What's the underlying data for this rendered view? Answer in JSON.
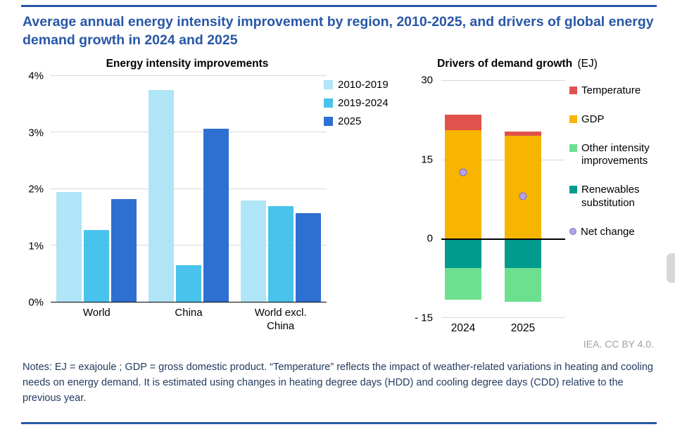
{
  "header": {
    "title": "Average annual energy intensity improvement by region, 2010-2025, and drivers of global energy demand growth in 2024 and 2025"
  },
  "attribution": "IEA. CC BY 4.0.",
  "notes": "Notes: EJ = exajoule ; GDP = gross domestic product. “Temperature” reflects the impact of weather-related variations in heating and cooling needs on energy demand. It is estimated using changes in heating degree days (HDD) and cooling degree days (CDD) relative to the previous year.",
  "colors": {
    "accent_blue": "#2857a6",
    "title_text": "#2857a6",
    "notes_text": "#233a60",
    "attribution_gray": "#a0a0a0",
    "gridline": "#d9d9d9",
    "axis_black": "#000000"
  },
  "chart_data": [
    {
      "type": "bar",
      "title": "Energy intensity improvements",
      "categories": [
        "World",
        "China",
        "World excl. China"
      ],
      "series": [
        {
          "name": "2010-2019",
          "color": "#b0e4f7",
          "values": [
            1.95,
            3.75,
            1.8
          ]
        },
        {
          "name": "2019-2024",
          "color": "#4ac3ec",
          "values": [
            1.27,
            0.65,
            1.7
          ]
        },
        {
          "name": "2025",
          "color": "#2e70d2",
          "values": [
            1.82,
            3.07,
            1.57
          ]
        }
      ],
      "ylim": [
        0,
        4
      ],
      "yticks": [
        0,
        1,
        2,
        3,
        4
      ],
      "ytick_labels": [
        "0%",
        "1%",
        "2%",
        "3%",
        "4%"
      ],
      "unit": "percent per year",
      "grid": true,
      "legend_position": "right"
    },
    {
      "type": "stacked-bar",
      "title": "Drivers of demand growth",
      "title_suffix": "(EJ)",
      "categories": [
        "2024",
        "2025"
      ],
      "series": [
        {
          "name": "Temperature",
          "color": "#e0524c",
          "values": [
            3.0,
            0.8
          ]
        },
        {
          "name": "GDP",
          "color": "#f7b500",
          "values": [
            20.5,
            19.5
          ]
        },
        {
          "name": "Other intensity improvements",
          "color": "#6ce08f",
          "values": [
            -6.0,
            -6.5
          ]
        },
        {
          "name": "Renewables substitution",
          "color": "#009b8d",
          "values": [
            -5.5,
            -5.5
          ]
        }
      ],
      "positive_stack": [
        "GDP",
        "Temperature"
      ],
      "negative_stack": [
        "Renewables substitution",
        "Other intensity improvements"
      ],
      "marker_series": {
        "name": "Net change",
        "fill": "#b4a4e3",
        "border": "#7e6cc8",
        "values": [
          12.5,
          8.0
        ]
      },
      "legend": [
        {
          "label": "Temperature",
          "color": "#e0524c",
          "shape": "square"
        },
        {
          "label": "GDP",
          "color": "#f7b500",
          "shape": "square"
        },
        {
          "label": "Other intensity improvements",
          "color": "#6ce08f",
          "shape": "square"
        },
        {
          "label": "Renewables substitution",
          "color": "#009b8d",
          "shape": "square"
        },
        {
          "label": "Net change",
          "color": "#b4a4e3",
          "shape": "circle"
        }
      ],
      "ylim": [
        -15,
        30
      ],
      "yticks": [
        30,
        15,
        0,
        -15
      ],
      "ytick_labels": [
        "30",
        "15",
        "0",
        "- 15"
      ],
      "grid": true,
      "legend_position": "right"
    }
  ]
}
